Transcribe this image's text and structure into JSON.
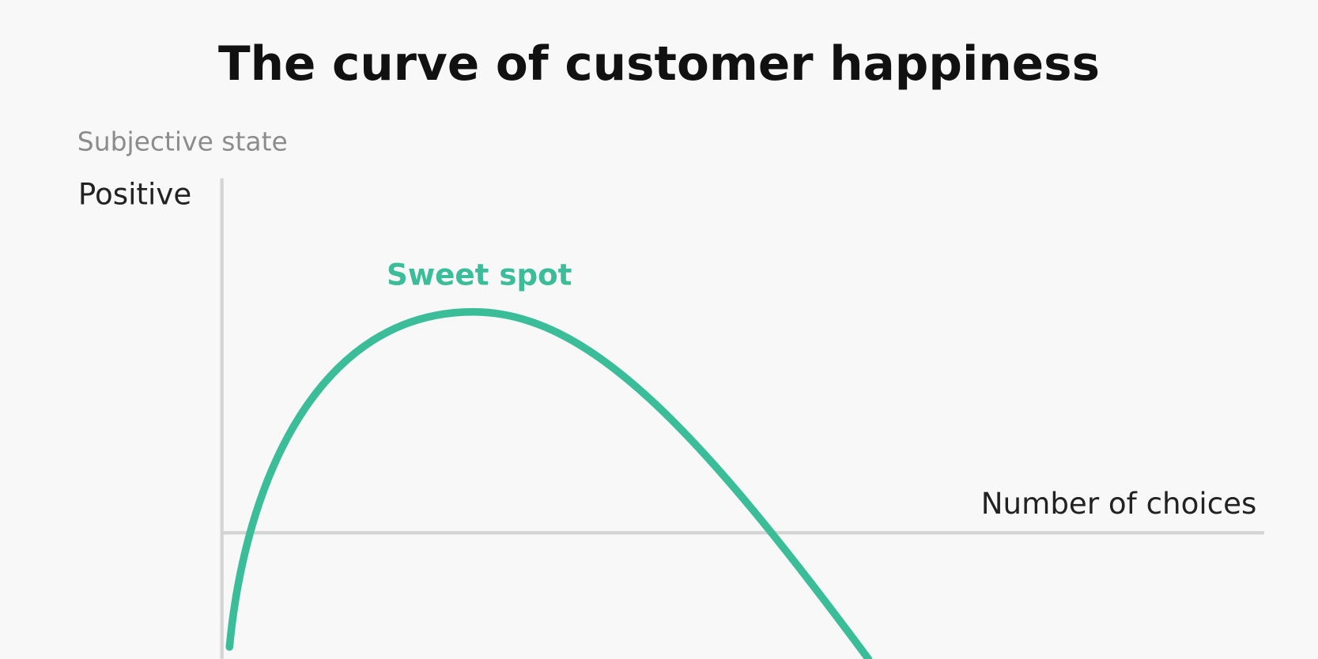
{
  "title": "The curve of customer happiness",
  "y_axis": {
    "title": "Subjective state",
    "top_label": "Positive"
  },
  "x_axis": {
    "title": "Number of choices"
  },
  "annotation": "Sweet spot"
}
